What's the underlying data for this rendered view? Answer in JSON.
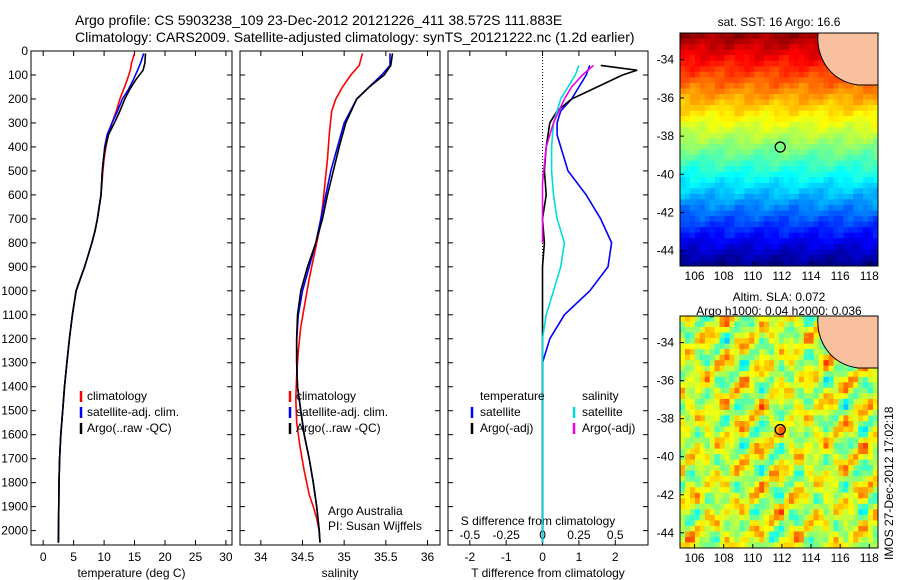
{
  "header": {
    "line1": "Argo profile: CS 5903238_109 23-Dec-2012 20121226_411 38.572S 111.883E",
    "line2": "Climatology: CARS2009. Satellite-adjusted climatology: synTS_20121222.nc (1.2d earlier)"
  },
  "footer": {
    "credit": "IMOS 27-Dec-2012 17:02:18"
  },
  "colors": {
    "climatology": "#ff0000",
    "satellite": "#0000ff",
    "argo": "#000000",
    "sat_salinity": "#00dddd",
    "argo_salinity": "#ee00ee"
  },
  "chart_data": [
    {
      "id": "temperature",
      "type": "line",
      "xlabel": "temperature (deg C)",
      "xlim": [
        -2,
        31
      ],
      "xticks": [
        0,
        5,
        10,
        15,
        20,
        25,
        30
      ],
      "ylim": [
        2060,
        0
      ],
      "yticks": [
        0,
        100,
        200,
        300,
        400,
        500,
        600,
        700,
        800,
        900,
        1000,
        1100,
        1200,
        1300,
        1400,
        1500,
        1600,
        1700,
        1800,
        1900,
        2000
      ],
      "legend": [
        "climatology",
        "satellite-adj. clim.",
        "Argo(..raw -QC)"
      ],
      "series": [
        {
          "name": "climatology",
          "color": "#ff0000",
          "x": [
            15.0,
            14.5,
            14.3,
            13.8,
            13.2,
            12.6,
            12.0,
            11.3,
            10.7,
            10.3,
            10.0,
            9.8,
            9.5,
            9.2,
            8.9,
            8.5,
            8.0,
            7.4,
            6.8,
            6.1,
            5.4,
            4.8,
            4.3,
            3.9,
            3.5,
            3.2,
            2.9,
            2.7,
            2.6,
            2.5
          ],
          "y": [
            10,
            50,
            80,
            120,
            160,
            200,
            250,
            300,
            350,
            400,
            450,
            500,
            600,
            650,
            700,
            750,
            800,
            850,
            900,
            950,
            1000,
            1100,
            1200,
            1300,
            1400,
            1500,
            1600,
            1700,
            1800,
            2050
          ]
        },
        {
          "name": "satellite-adj. clim.",
          "color": "#0000ff",
          "x": [
            16.5,
            16.0,
            15.5,
            14.8,
            14.0,
            13.0,
            12.2,
            11.3,
            10.5,
            10.1,
            9.9,
            9.7,
            9.5,
            9.2,
            8.9,
            8.5,
            8.0,
            7.4,
            6.8,
            6.1,
            5.4,
            4.8,
            4.3,
            3.9,
            3.5,
            3.2,
            2.9,
            2.7,
            2.6,
            2.5
          ],
          "y": [
            10,
            50,
            80,
            120,
            160,
            200,
            250,
            300,
            350,
            400,
            450,
            500,
            600,
            650,
            700,
            750,
            800,
            850,
            900,
            950,
            1000,
            1100,
            1200,
            1300,
            1400,
            1500,
            1600,
            1700,
            1800,
            2050
          ]
        },
        {
          "name": "Argo(..raw -QC)",
          "color": "#000000",
          "x": [
            16.8,
            16.7,
            16.4,
            15.2,
            14.2,
            13.4,
            12.6,
            11.7,
            10.7,
            10.2,
            9.9,
            9.7,
            9.5,
            9.2,
            8.9,
            8.5,
            8.0,
            7.4,
            6.8,
            6.1,
            5.4,
            4.8,
            4.3,
            3.9,
            3.5,
            3.2,
            2.9,
            2.7,
            2.6,
            2.5
          ],
          "y": [
            10,
            50,
            80,
            120,
            160,
            200,
            250,
            300,
            350,
            400,
            450,
            500,
            600,
            650,
            700,
            750,
            800,
            850,
            900,
            950,
            1000,
            1100,
            1200,
            1300,
            1400,
            1500,
            1600,
            1700,
            1800,
            2050
          ]
        }
      ]
    },
    {
      "id": "salinity",
      "type": "line",
      "xlabel": "salinity",
      "xlim": [
        33.75,
        36.15
      ],
      "xticks": [
        34,
        34.5,
        35,
        35.5,
        36
      ],
      "ylim": [
        2060,
        0
      ],
      "legend": [
        "climatology",
        "satellite-adj. clim.",
        "Argo(..raw -QC)"
      ],
      "annotation": [
        "Argo Australia",
        "PI: Susan Wijffels"
      ],
      "series": [
        {
          "name": "climatology",
          "color": "#ff0000",
          "x": [
            35.22,
            35.18,
            35.08,
            34.98,
            34.9,
            34.85,
            34.82,
            34.8,
            34.77,
            34.74,
            34.7,
            34.64,
            34.58,
            34.53,
            34.48,
            34.45,
            34.43,
            34.42,
            34.43,
            34.47,
            34.52,
            34.58,
            34.63,
            34.67,
            34.7,
            34.71
          ],
          "y": [
            10,
            60,
            100,
            150,
            200,
            250,
            350,
            450,
            550,
            650,
            750,
            850,
            950,
            1050,
            1150,
            1250,
            1350,
            1450,
            1550,
            1650,
            1750,
            1850,
            1900,
            1950,
            2000,
            2050
          ]
        },
        {
          "name": "satellite-adj. clim.",
          "color": "#0000ff",
          "x": [
            35.55,
            35.55,
            35.45,
            35.3,
            35.15,
            35.0,
            34.92,
            34.84,
            34.78,
            34.72,
            34.66,
            34.58,
            34.5,
            34.45,
            34.43,
            34.43,
            34.44,
            34.48,
            34.52,
            34.58,
            34.63,
            34.67,
            34.7,
            34.71
          ],
          "y": [
            10,
            60,
            100,
            150,
            200,
            300,
            400,
            500,
            600,
            700,
            800,
            900,
            1000,
            1100,
            1200,
            1300,
            1400,
            1500,
            1600,
            1700,
            1800,
            1900,
            2000,
            2050
          ]
        },
        {
          "name": "Argo(..raw -QC)",
          "color": "#000000",
          "x": [
            35.58,
            35.56,
            35.48,
            35.3,
            35.15,
            35.02,
            34.94,
            34.87,
            34.8,
            34.74,
            34.66,
            34.56,
            34.48,
            34.44,
            34.43,
            34.43,
            34.44,
            34.48,
            34.52,
            34.58,
            34.63,
            34.67,
            34.7,
            34.71
          ],
          "y": [
            10,
            60,
            100,
            150,
            200,
            300,
            400,
            500,
            600,
            700,
            800,
            900,
            1000,
            1100,
            1200,
            1300,
            1400,
            1500,
            1600,
            1700,
            1800,
            1900,
            2000,
            2050
          ]
        }
      ]
    },
    {
      "id": "difference",
      "type": "line",
      "xlabel": "T difference from climatology",
      "xlabel_top": "S difference from climatology",
      "xlim": [
        -2.6,
        2.9
      ],
      "xticks": [
        -2,
        -1,
        0,
        1,
        2
      ],
      "xticklabels_s": [
        "-0.5",
        "-0.25",
        "0",
        "0.25",
        "0.5"
      ],
      "ylim": [
        2060,
        0
      ],
      "legend_left_title": "temperature",
      "legend_right_title": "salinity",
      "legend": [
        "satellite",
        "Argo(-adj)",
        "satellite",
        "Argo(-adj)"
      ],
      "series": [
        {
          "name": "satellite",
          "group": "temperature",
          "color": "#0000ff",
          "x": [
            1.3,
            1.2,
            1.0,
            0.8,
            0.5,
            0.4,
            0.4,
            0.5,
            0.7,
            1.2,
            1.6,
            1.9,
            1.8,
            1.3,
            0.6,
            0.2,
            0.0,
            0.0,
            0.0,
            0.0,
            0.0,
            0.0,
            0.0
          ],
          "y": [
            60,
            100,
            150,
            200,
            250,
            300,
            350,
            400,
            500,
            600,
            700,
            800,
            900,
            1000,
            1100,
            1200,
            1300,
            1400,
            1500,
            1600,
            1700,
            1800,
            2050
          ]
        },
        {
          "name": "Argo(-adj)",
          "group": "temperature",
          "color": "#000000",
          "x": [
            1.6,
            2.6,
            2.2,
            1.5,
            0.8,
            0.4,
            0.2,
            0.1,
            0.05,
            0.1,
            0.0,
            0.05,
            0.0,
            0.0,
            0.0,
            0.0,
            0.0,
            0.0
          ],
          "y": [
            60,
            80,
            100,
            150,
            200,
            250,
            300,
            400,
            500,
            600,
            700,
            800,
            900,
            1000,
            1200,
            1400,
            1700,
            2050
          ]
        },
        {
          "name": "satellite",
          "group": "salinity",
          "color": "#00dddd",
          "x": [
            1.0,
            0.9,
            0.7,
            0.5,
            0.4,
            0.3,
            0.25,
            0.25,
            0.3,
            0.4,
            0.6,
            0.5,
            0.3,
            0.1,
            0.0,
            0.0,
            0.0,
            0.0
          ],
          "y": [
            60,
            100,
            150,
            200,
            250,
            300,
            400,
            500,
            600,
            700,
            800,
            900,
            1000,
            1100,
            1200,
            1400,
            1700,
            2050
          ]
        },
        {
          "name": "Argo(-adj)",
          "group": "salinity",
          "color": "#ee00ee",
          "x": [
            1.4,
            1.1,
            0.8,
            0.6,
            0.3,
            0.1,
            0.0,
            0.0,
            0.0
          ],
          "y": [
            60,
            100,
            150,
            200,
            300,
            400,
            550,
            700,
            800
          ]
        }
      ]
    },
    {
      "id": "sst_map",
      "type": "heatmap",
      "title": "sat. SST: 16 Argo: 16.6",
      "xlim": [
        105,
        118.6
      ],
      "ylim": [
        -44.8,
        -32.6
      ],
      "xticks": [
        106,
        108,
        110,
        112,
        114,
        116,
        118
      ],
      "yticks": [
        -34,
        -36,
        -38,
        -40,
        -42,
        -44
      ],
      "profile_location": {
        "lon": 111.883,
        "lat": -38.572
      }
    },
    {
      "id": "sla_map",
      "type": "heatmap",
      "title": "Altim. SLA: 0.072",
      "subtitle": "Argo h1000: 0.04 h2000: 0.036",
      "xlim": [
        105,
        118.6
      ],
      "ylim": [
        -44.8,
        -32.6
      ],
      "xticks": [
        106,
        108,
        110,
        112,
        114,
        116,
        118
      ],
      "yticks": [
        -34,
        -36,
        -38,
        -40,
        -42,
        -44
      ],
      "profile_location": {
        "lon": 111.883,
        "lat": -38.572
      }
    }
  ]
}
